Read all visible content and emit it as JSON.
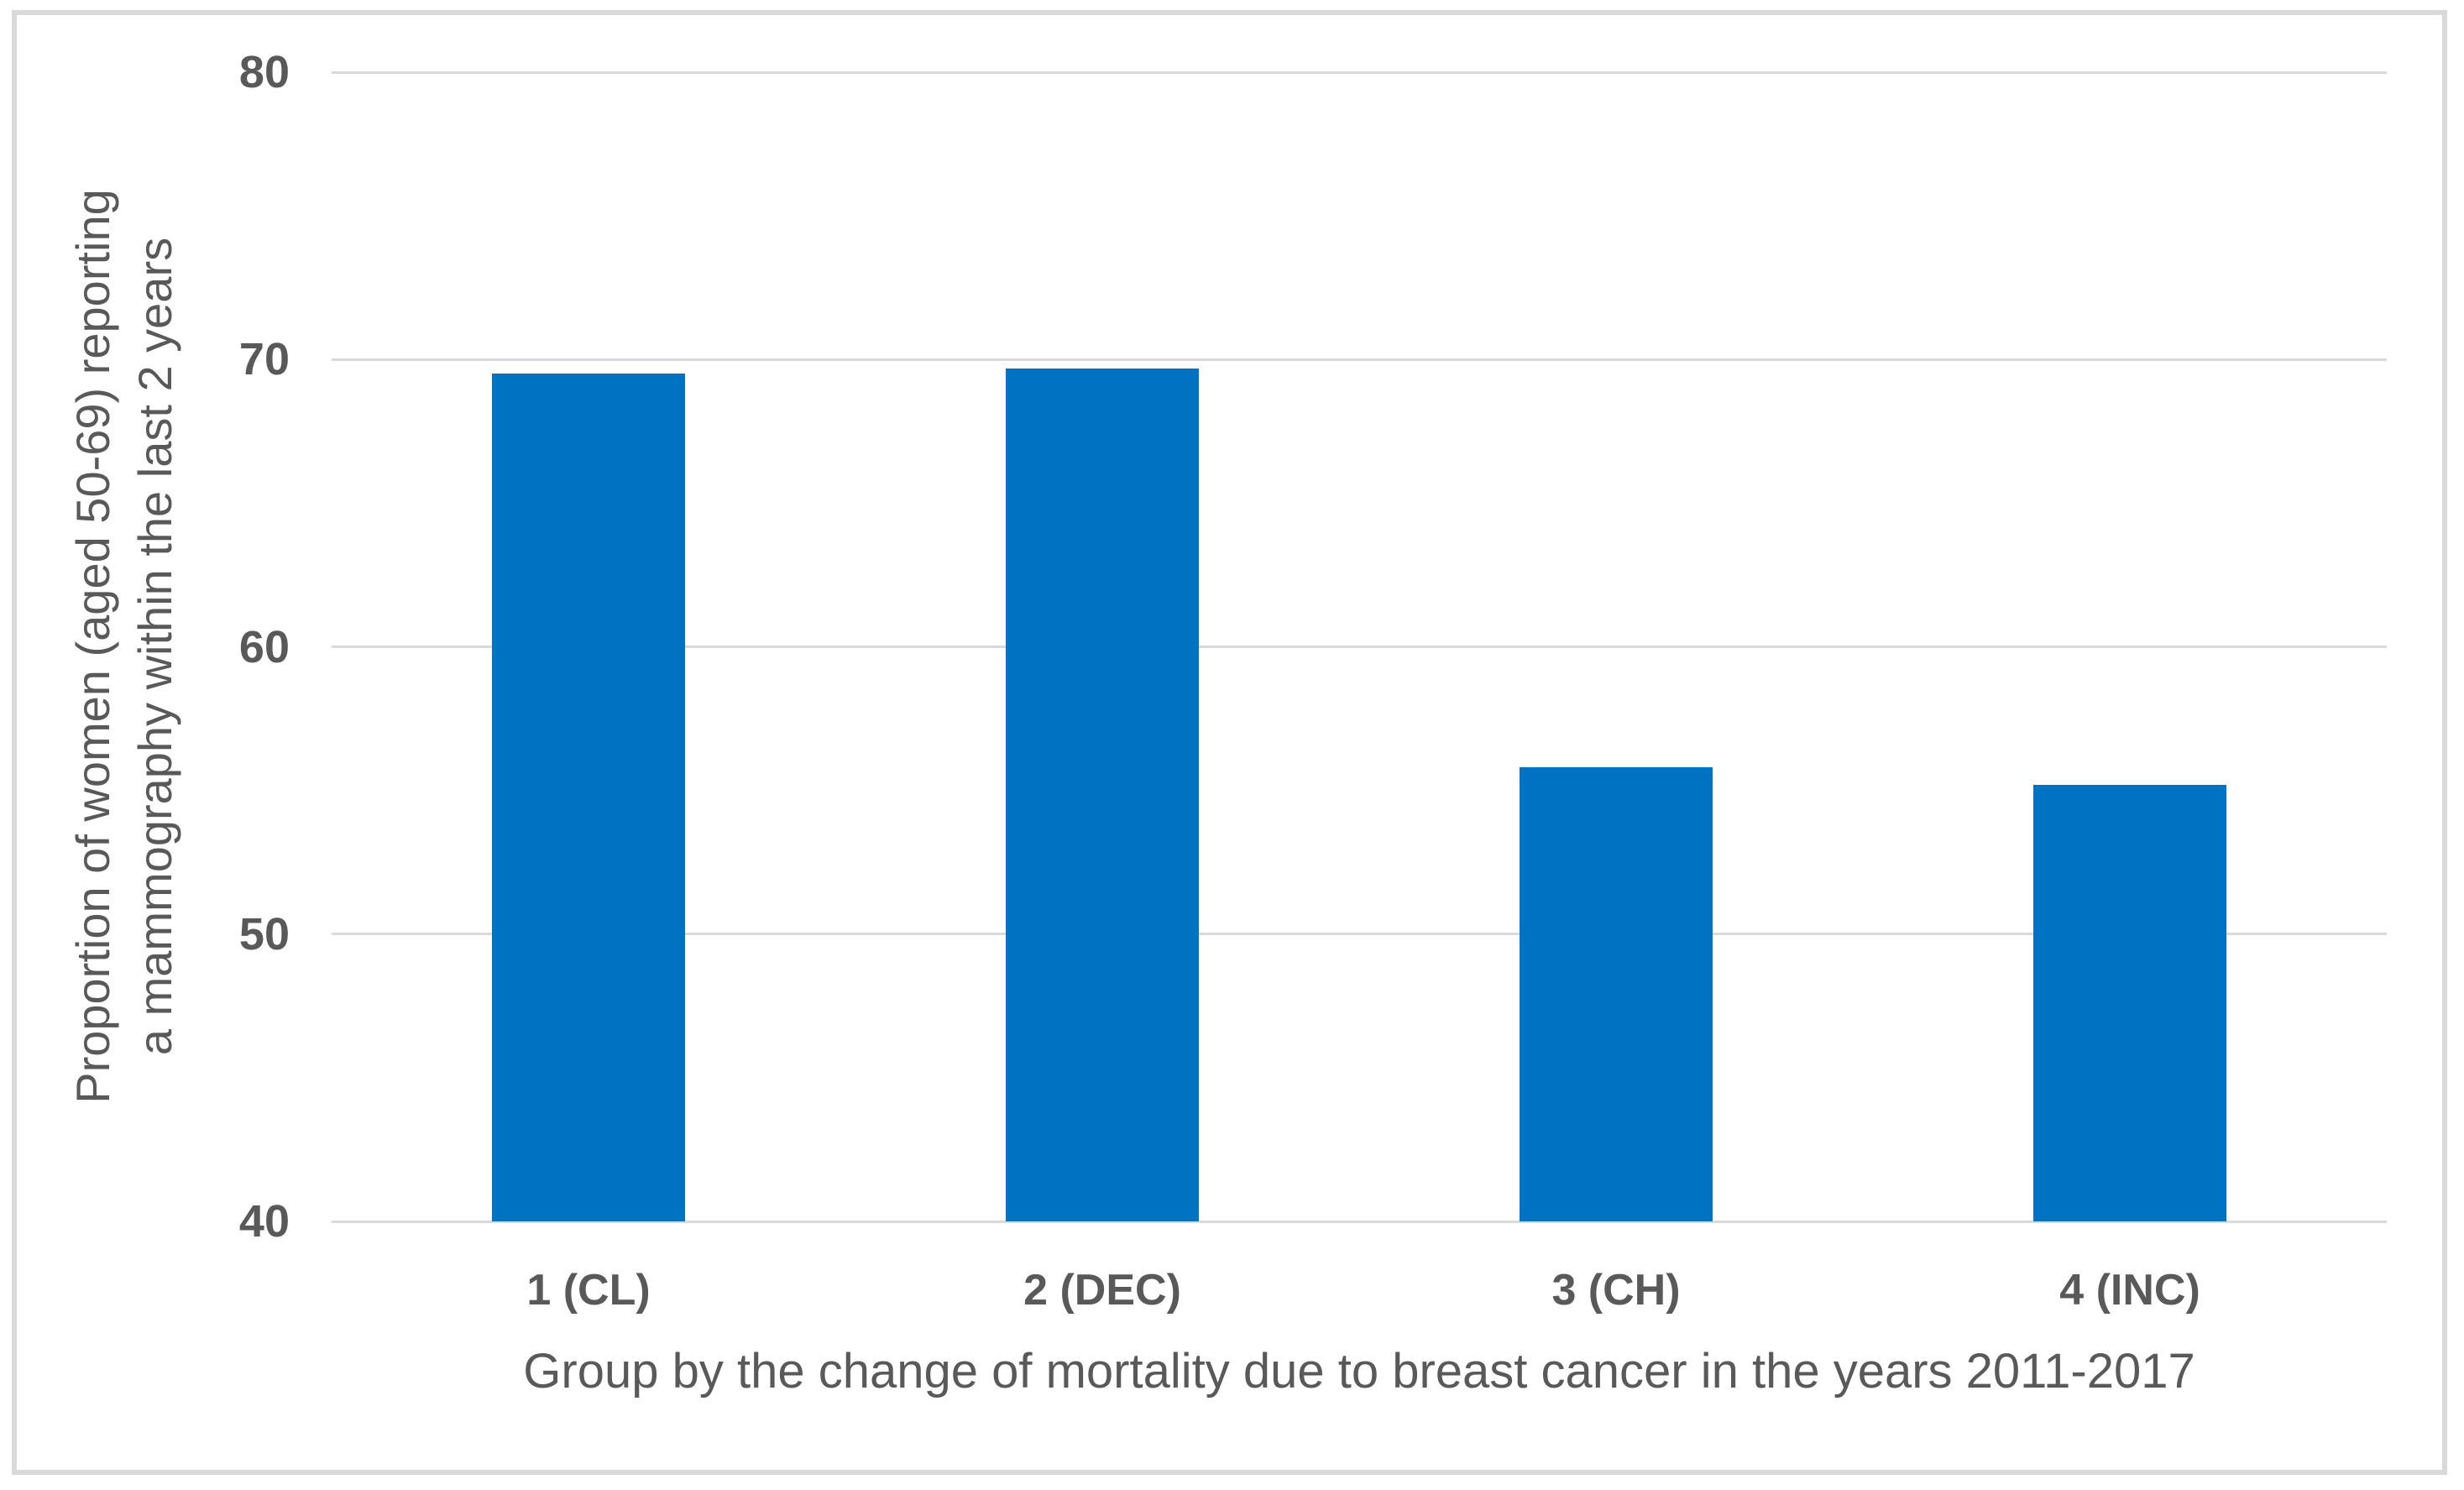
{
  "chart_data": {
    "type": "bar",
    "categories": [
      "1 (CL)",
      "2 (DEC)",
      "3 (CH)",
      "4 (INC)"
    ],
    "values": [
      69.5,
      69.7,
      55.8,
      55.2
    ],
    "xlabel": "Group by the change of mortality due to breast cancer in the years 2011-2017",
    "ylabel_line1": "Proportion of women (aged 50-69) reporting",
    "ylabel_line2": "a mammography within the last 2 years",
    "ylim": [
      40,
      80
    ],
    "yticks": [
      80,
      70,
      60,
      50,
      40
    ],
    "grid": true,
    "legend_position": "none",
    "bar_color": "#0072c2",
    "gridline_color": "#d9d9d9",
    "frame_border_color": "#d9d9d9",
    "text_color": "#595959"
  }
}
